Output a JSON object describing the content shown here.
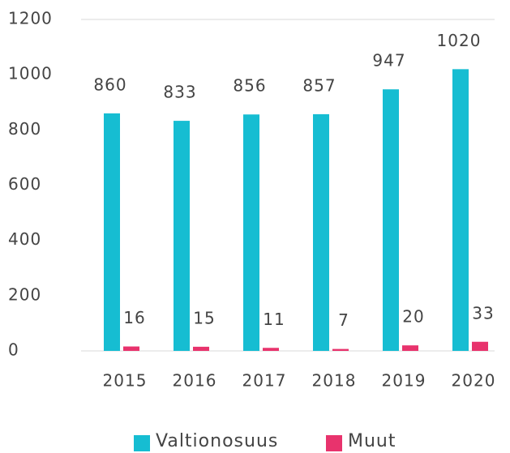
{
  "chart_data": {
    "type": "bar",
    "categories": [
      "2015",
      "2016",
      "2017",
      "2018",
      "2019",
      "2020"
    ],
    "series": [
      {
        "name": "Valtionosuus",
        "color": "#16bdd2",
        "values": [
          860,
          833,
          856,
          857,
          947,
          1020
        ]
      },
      {
        "name": "Muut",
        "color": "#e8336d",
        "values": [
          16,
          15,
          11,
          7,
          20,
          33
        ]
      }
    ],
    "ylim": [
      0,
      1200
    ],
    "yticks": [
      0,
      200,
      400,
      600,
      800,
      1000,
      1200
    ],
    "grid": false,
    "legend": "bottom"
  }
}
